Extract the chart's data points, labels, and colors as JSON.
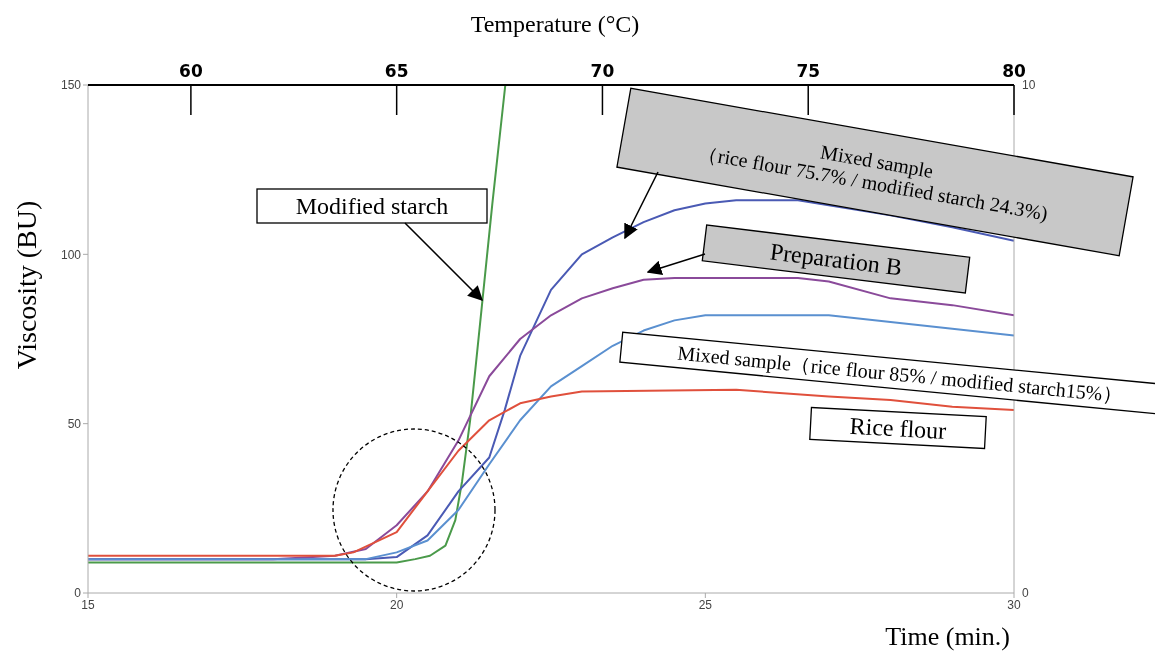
{
  "chart_data": {
    "type": "line",
    "xlabel": "Time (min.)",
    "ylabel": "Viscosity (BU)",
    "x2label": "Temperature (°C)",
    "xlim": [
      15,
      30
    ],
    "xticks": [
      15,
      20,
      25,
      30
    ],
    "ylim": [
      0,
      150
    ],
    "yticks": [
      0,
      50,
      100,
      150
    ],
    "y2lim": [
      0,
      10
    ],
    "y2ticks": [
      0,
      10
    ],
    "x2lim": [
      57.5,
      80
    ],
    "x2ticks": [
      60,
      65,
      70,
      75,
      80
    ],
    "marker": "none",
    "line_style": "solid",
    "series": [
      {
        "name": "Modified starch",
        "color": "#4a9a4a",
        "x": [
          15,
          16,
          17,
          18,
          19,
          20,
          20.3,
          20.54,
          20.79,
          20.95,
          21.06,
          21.19,
          21.39,
          21.55,
          21.76
        ],
        "values": [
          9,
          9,
          9,
          9,
          9,
          9,
          10,
          11,
          14,
          21.5,
          33,
          51,
          86.5,
          115,
          150
        ]
      },
      {
        "name": "Mixed sample\n（rice flour 75.7% / modified starch 24.3%)",
        "color": "#4a5ab4",
        "x": [
          15,
          16,
          17,
          18,
          19,
          19.5,
          20,
          20.5,
          21,
          21.5,
          21.75,
          22,
          22.5,
          23,
          23.5,
          24,
          24.5,
          25,
          25.5,
          26.5,
          27,
          28,
          29,
          30
        ],
        "values": [
          10,
          10,
          10,
          10,
          10,
          10,
          10.6,
          17,
          30,
          40,
          54,
          70,
          89.5,
          100,
          105,
          109.5,
          113,
          115,
          116,
          116,
          114.5,
          111.5,
          108,
          104
        ]
      },
      {
        "name": "Preparation B",
        "color": "#8a4a9a",
        "x": [
          15,
          16,
          17,
          18,
          19,
          19.5,
          20,
          20.5,
          21,
          21.5,
          22,
          22.5,
          23,
          23.5,
          24,
          24.5,
          26.5,
          27,
          28,
          29,
          30
        ],
        "values": [
          10,
          10,
          10,
          10,
          11,
          13,
          20,
          30,
          45,
          64,
          75,
          82,
          87,
          90,
          92.5,
          93,
          93,
          92,
          87,
          85,
          82
        ]
      },
      {
        "name": "Mixed sample（rice flour 85% / modified starch15%）",
        "color": "#5a90d0",
        "x": [
          15,
          16,
          17,
          18,
          19,
          19.5,
          20,
          20.5,
          21,
          21.5,
          22,
          22.5,
          23,
          23.5,
          24,
          24.5,
          25,
          27,
          28,
          29,
          30
        ],
        "values": [
          10,
          10,
          10,
          10,
          10,
          10,
          12,
          15.5,
          24.5,
          38,
          51,
          61,
          67,
          73,
          77.5,
          80.5,
          82,
          82,
          80,
          78,
          76
        ]
      },
      {
        "name": "Rice flour",
        "color": "#e0503c",
        "x": [
          15,
          16,
          17,
          18,
          19,
          19.3,
          20,
          20.5,
          21,
          21.5,
          22,
          22.5,
          23,
          25.5,
          27,
          28,
          29,
          30
        ],
        "values": [
          11,
          11,
          11,
          11,
          11,
          12,
          18,
          30,
          42,
          51,
          56,
          58,
          59.5,
          60,
          58,
          57,
          55,
          54
        ]
      }
    ]
  }
}
